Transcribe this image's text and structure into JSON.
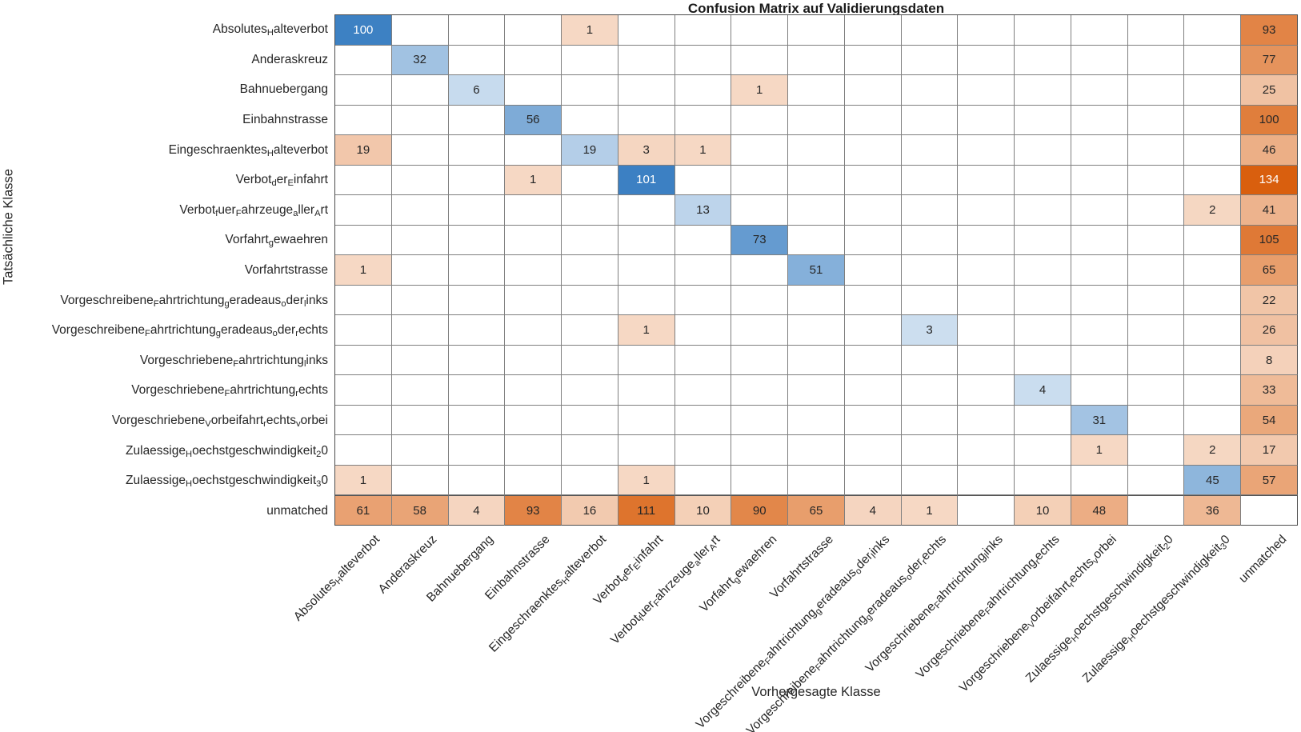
{
  "chart_data": {
    "type": "heatmap",
    "subtype": "confusion-matrix",
    "title": "Confusion Matrix auf Validierungsdaten",
    "xlabel": "Vorhergesagte Klasse",
    "ylabel": "Tatsächliche Klasse",
    "label_format_note": "underscore in a class name renders the following character as a subscript",
    "classes": [
      "Absolutes_Halteverbot",
      "Anderaskreuz",
      "Bahnuebergang",
      "Einbahnstrasse",
      "Eingeschraenktes_Halteverbot",
      "Verbot_der_Einfahrt",
      "Verbot_fuer_Fahrzeuge_aller_Art",
      "Vorfahrt_gewaehren",
      "Vorfahrtstrasse",
      "Vorgeschreibene_Fahrtrichtung_geradeaus_oder_links",
      "Vorgeschreibene_Fahrtrichtung_geradeaus_oder_rechts",
      "Vorgeschriebene_Fahrtrichtung_links",
      "Vorgeschriebene_Fahrtrichtung_rechts",
      "Vorgeschriebene_Vorbeifahrt_rechts_vorbei",
      "Zulaessige_Hoechstgeschwindigkeit_20",
      "Zulaessige_Hoechstgeschwindigkeit_30",
      "unmatched"
    ],
    "matrix": [
      [
        100,
        0,
        0,
        0,
        1,
        0,
        0,
        0,
        0,
        0,
        0,
        0,
        0,
        0,
        0,
        0,
        93
      ],
      [
        0,
        32,
        0,
        0,
        0,
        0,
        0,
        0,
        0,
        0,
        0,
        0,
        0,
        0,
        0,
        0,
        77
      ],
      [
        0,
        0,
        6,
        0,
        0,
        0,
        0,
        1,
        0,
        0,
        0,
        0,
        0,
        0,
        0,
        0,
        25
      ],
      [
        0,
        0,
        0,
        56,
        0,
        0,
        0,
        0,
        0,
        0,
        0,
        0,
        0,
        0,
        0,
        0,
        100
      ],
      [
        19,
        0,
        0,
        0,
        19,
        3,
        1,
        0,
        0,
        0,
        0,
        0,
        0,
        0,
        0,
        0,
        46
      ],
      [
        0,
        0,
        0,
        1,
        0,
        101,
        0,
        0,
        0,
        0,
        0,
        0,
        0,
        0,
        0,
        0,
        134
      ],
      [
        0,
        0,
        0,
        0,
        0,
        0,
        13,
        0,
        0,
        0,
        0,
        0,
        0,
        0,
        0,
        2,
        41
      ],
      [
        0,
        0,
        0,
        0,
        0,
        0,
        0,
        73,
        0,
        0,
        0,
        0,
        0,
        0,
        0,
        0,
        105
      ],
      [
        1,
        0,
        0,
        0,
        0,
        0,
        0,
        0,
        51,
        0,
        0,
        0,
        0,
        0,
        0,
        0,
        65
      ],
      [
        0,
        0,
        0,
        0,
        0,
        0,
        0,
        0,
        0,
        0,
        0,
        0,
        0,
        0,
        0,
        0,
        22
      ],
      [
        0,
        0,
        0,
        0,
        0,
        1,
        0,
        0,
        0,
        0,
        3,
        0,
        0,
        0,
        0,
        0,
        26
      ],
      [
        0,
        0,
        0,
        0,
        0,
        0,
        0,
        0,
        0,
        0,
        0,
        0,
        0,
        0,
        0,
        0,
        8
      ],
      [
        0,
        0,
        0,
        0,
        0,
        0,
        0,
        0,
        0,
        0,
        0,
        0,
        4,
        0,
        0,
        0,
        33
      ],
      [
        0,
        0,
        0,
        0,
        0,
        0,
        0,
        0,
        0,
        0,
        0,
        0,
        0,
        31,
        0,
        0,
        54
      ],
      [
        0,
        0,
        0,
        0,
        0,
        0,
        0,
        0,
        0,
        0,
        0,
        0,
        0,
        1,
        0,
        2,
        17
      ],
      [
        1,
        0,
        0,
        0,
        0,
        1,
        0,
        0,
        0,
        0,
        0,
        0,
        0,
        0,
        0,
        45,
        57
      ],
      [
        61,
        58,
        4,
        93,
        16,
        111,
        10,
        90,
        65,
        4,
        1,
        0,
        10,
        48,
        0,
        36,
        0
      ]
    ],
    "colors": {
      "diagonal": "#3c80c3",
      "off_diagonal": "#d95f0e",
      "empty_cell": "#ffffff",
      "grid_line": "#7f7f7f",
      "text_dark": "#262626",
      "text_light": "#ffffff"
    },
    "legend_position": "none",
    "grid": true
  }
}
